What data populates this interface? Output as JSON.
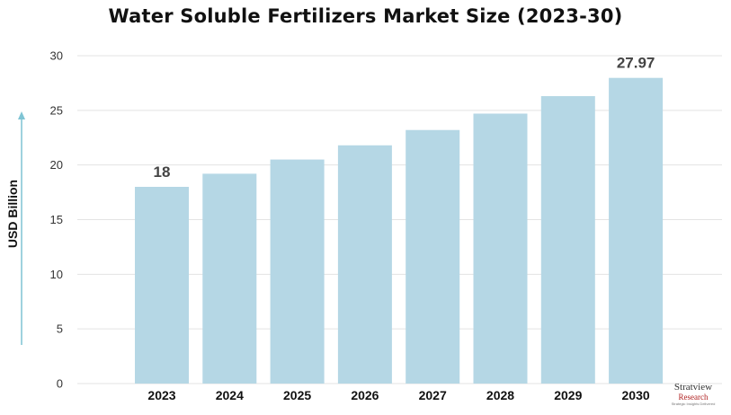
{
  "chart_data": {
    "type": "bar",
    "title": "Water Soluble Fertilizers Market Size (2023-30)",
    "ylabel": "USD Billion",
    "xlabel": "",
    "categories": [
      "2023",
      "2024",
      "2025",
      "2026",
      "2027",
      "2028",
      "2029",
      "2030"
    ],
    "values": [
      18,
      19.2,
      20.5,
      21.8,
      23.2,
      24.7,
      26.3,
      27.97
    ],
    "data_labels": [
      {
        "category": "2023",
        "text": "18"
      },
      {
        "category": "2030",
        "text": "27.97"
      }
    ],
    "ylim": [
      0,
      30
    ],
    "yticks": [
      0,
      5,
      10,
      15,
      20,
      25,
      30
    ],
    "grid": true,
    "bar_color": "#b5d7e5",
    "grid_color": "#e3e3e3",
    "arrow_color": "#7fc4d4"
  },
  "logo": {
    "brand": "Stratview",
    "sub": "Research",
    "tag": "Strategic Insights Delivered"
  }
}
